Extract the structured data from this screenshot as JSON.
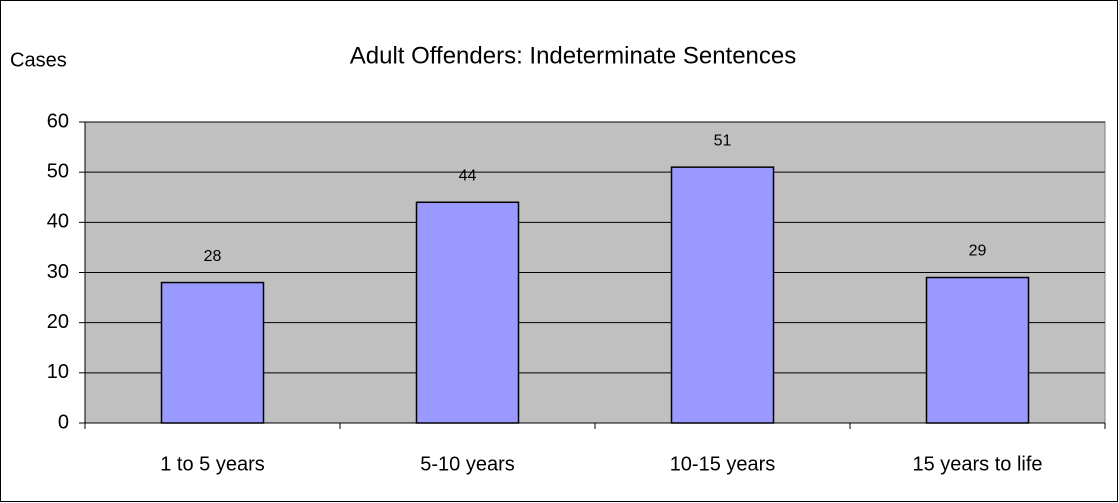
{
  "chart_data": {
    "type": "bar",
    "title": "Adult Offenders:  Indeterminate Sentences",
    "y_label": "Cases",
    "categories": [
      "1 to 5 years",
      "5-10 years",
      "10-15 years",
      "15 years to life"
    ],
    "values": [
      28,
      44,
      51,
      29
    ],
    "color": "#9999ff",
    "ylim": [
      0,
      60
    ],
    "yticks": [
      0,
      10,
      20,
      30,
      40,
      50,
      60
    ],
    "grid": true
  }
}
